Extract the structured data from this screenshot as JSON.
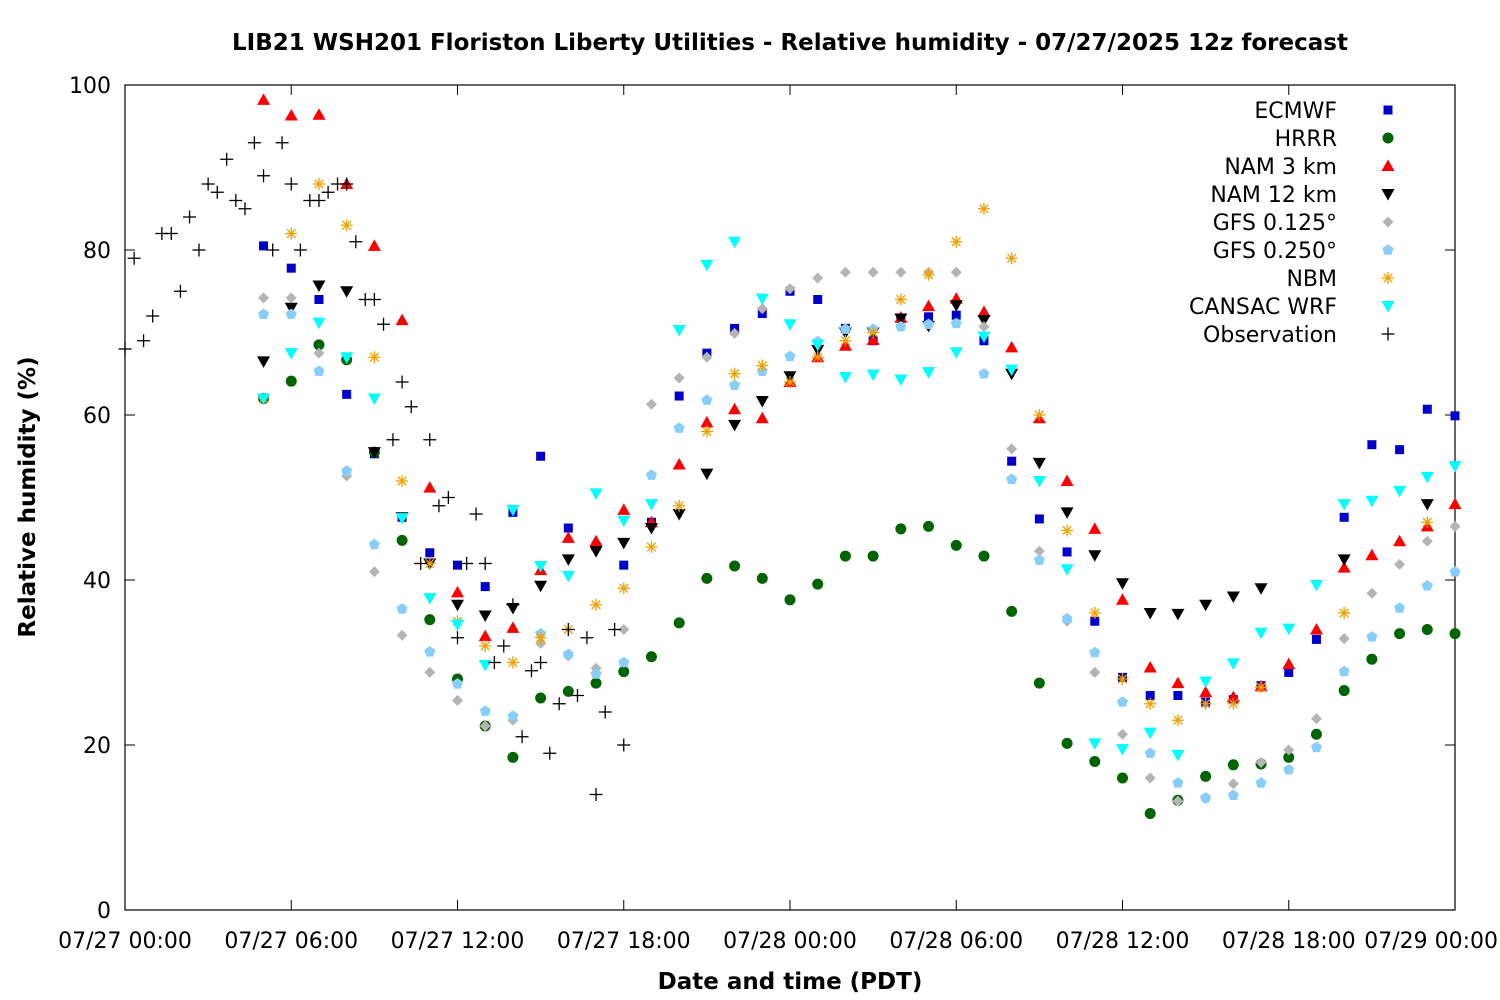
{
  "chart_data": {
    "type": "scatter",
    "title": "LIB21 WSH201 Floriston Liberty Utilities - Relative humidity - 07/27/2025 12z forecast",
    "xlabel": "Date and time (PDT)",
    "ylabel": "Relative humidity (%)",
    "x_unit": "hours since 07/27 00:00 PDT",
    "xlim": [
      0,
      48
    ],
    "ylim": [
      0,
      100
    ],
    "x_ticks": [
      {
        "value": 0,
        "label": "07/27 00:00"
      },
      {
        "value": 6,
        "label": "07/27 06:00"
      },
      {
        "value": 12,
        "label": "07/27 12:00"
      },
      {
        "value": 18,
        "label": "07/27 18:00"
      },
      {
        "value": 24,
        "label": "07/28 00:00"
      },
      {
        "value": 30,
        "label": "07/28 06:00"
      },
      {
        "value": 36,
        "label": "07/28 12:00"
      },
      {
        "value": 42,
        "label": "07/28 18:00"
      },
      {
        "value": 48,
        "label": "07/29 00:00"
      }
    ],
    "y_ticks": [
      0,
      20,
      40,
      60,
      80,
      100
    ],
    "grid": false,
    "legend_position": "top-right",
    "series": [
      {
        "name": "ECMWF",
        "marker": "square",
        "color": "#0000cc",
        "x": [
          5,
          6,
          7,
          8,
          9,
          10,
          11,
          12,
          13,
          14,
          15,
          16,
          17,
          18,
          19,
          20,
          21,
          22,
          23,
          24,
          25,
          26,
          27,
          28,
          29,
          30,
          31,
          32,
          33,
          34,
          35,
          36,
          37,
          38,
          39,
          40,
          41,
          42,
          43,
          44,
          45,
          46,
          47,
          48
        ],
        "y": [
          80.5,
          77.8,
          74,
          62.5,
          55.3,
          47.6,
          43.3,
          41.8,
          39.2,
          48.2,
          55,
          46.3,
          44.1,
          41.8,
          47,
          62.3,
          67.5,
          70.5,
          72.3,
          75,
          74,
          70.5,
          69,
          71.7,
          71.9,
          72.1,
          69,
          54.4,
          47.4,
          43.4,
          35,
          28.2,
          26,
          26,
          25.2,
          25.5,
          27.2,
          28.8,
          32.8,
          47.6,
          56.4,
          55.8,
          60.7,
          59.9
        ]
      },
      {
        "name": "HRRR",
        "marker": "circle",
        "color": "#006400",
        "x": [
          5,
          6,
          7,
          8,
          9,
          10,
          11,
          12,
          13,
          14,
          15,
          16,
          17,
          18,
          19,
          20,
          21,
          22,
          23,
          24,
          25,
          26,
          27,
          28,
          29,
          30,
          31,
          32,
          33,
          34,
          35,
          36,
          37,
          38,
          39,
          40,
          41,
          42,
          43,
          44,
          45,
          46,
          47,
          48
        ],
        "y": [
          62,
          64.1,
          68.5,
          66.7,
          55.5,
          44.8,
          35.2,
          28,
          22.3,
          18.5,
          25.7,
          26.5,
          27.5,
          28.9,
          30.7,
          34.8,
          40.2,
          41.7,
          40.2,
          37.6,
          39.5,
          42.9,
          42.9,
          46.2,
          46.5,
          44.2,
          42.9,
          36.2,
          27.5,
          20.2,
          18,
          16,
          11.7,
          13.3,
          16.2,
          17.6,
          17.7,
          18.5,
          21.3,
          26.6,
          30.4,
          33.5,
          34,
          33.5
        ]
      },
      {
        "name": "NAM 3 km",
        "marker": "triangle-up",
        "color": "#ff0000",
        "x": [
          5,
          6,
          7,
          8,
          9,
          10,
          11,
          12,
          13,
          14,
          15,
          16,
          17,
          18,
          19,
          20,
          21,
          22,
          23,
          24,
          25,
          26,
          27,
          28,
          29,
          30,
          31,
          32,
          33,
          34,
          35,
          36,
          37,
          38,
          39,
          40,
          41,
          42,
          43,
          44,
          45,
          46,
          47,
          48
        ],
        "y": [
          98.2,
          96.3,
          96.4,
          88,
          80.5,
          71.5,
          51.2,
          38.5,
          33.2,
          34.2,
          41.2,
          45.1,
          44.7,
          48.5,
          47,
          54,
          59.1,
          60.7,
          59.6,
          64,
          67,
          68.4,
          69.1,
          71.8,
          73.2,
          74.1,
          72.5,
          68.2,
          59.6,
          52,
          46.2,
          37.6,
          29.4,
          27.5,
          26.4,
          25.8,
          27.1,
          29.8,
          34,
          41.5,
          43,
          44.7,
          46.5,
          49.2
        ]
      },
      {
        "name": "NAM 12 km",
        "marker": "triangle-down",
        "color": "#000000",
        "x": [
          5,
          6,
          7,
          8,
          9,
          10,
          11,
          12,
          13,
          14,
          15,
          16,
          17,
          18,
          19,
          20,
          21,
          22,
          23,
          24,
          25,
          26,
          27,
          28,
          29,
          30,
          31,
          32,
          33,
          34,
          35,
          36,
          37,
          38,
          39,
          40,
          41,
          42,
          43,
          44,
          45,
          46,
          47,
          48
        ],
        "y": [
          66.5,
          73,
          75.7,
          75,
          55.5,
          47.6,
          42,
          37,
          35.7,
          36.6,
          39.3,
          42.5,
          43.5,
          44.5,
          46.3,
          48,
          52.9,
          58.8,
          61.7,
          64.7,
          67.9,
          70,
          70,
          71.7,
          70.8,
          73.3,
          71.5,
          65,
          54.2,
          48.2,
          43,
          39.6,
          36,
          35.9,
          37,
          38,
          39,
          null,
          null,
          42.5,
          null,
          null,
          49.2,
          null
        ]
      },
      {
        "name": "GFS 0.125°",
        "marker": "diamond",
        "color": "#b4b4b4",
        "x": [
          5,
          6,
          7,
          8,
          9,
          10,
          11,
          12,
          13,
          14,
          15,
          16,
          17,
          18,
          19,
          20,
          21,
          22,
          23,
          24,
          25,
          26,
          27,
          28,
          29,
          30,
          31,
          32,
          33,
          34,
          35,
          36,
          37,
          38,
          39,
          40,
          41,
          42,
          43,
          44,
          45,
          46,
          47,
          48
        ],
        "y": [
          74.2,
          74.2,
          67.5,
          52.6,
          41,
          33.3,
          28.8,
          25.4,
          22.3,
          23,
          32.3,
          30.8,
          29.3,
          34,
          61.3,
          64.5,
          67,
          69.9,
          72.9,
          75.3,
          76.6,
          77.3,
          77.3,
          77.3,
          77.3,
          77.3,
          70.7,
          55.9,
          43.5,
          35,
          28.8,
          21.3,
          16,
          13.2,
          13.5,
          15.3,
          17.9,
          19.4,
          23.2,
          32.9,
          38.4,
          41.9,
          44.7,
          46.5
        ]
      },
      {
        "name": "GFS 0.250°",
        "marker": "pentagon",
        "color": "#87cefa",
        "x": [
          5,
          6,
          7,
          8,
          9,
          10,
          11,
          12,
          13,
          14,
          15,
          16,
          17,
          18,
          19,
          20,
          21,
          22,
          23,
          24,
          25,
          26,
          27,
          28,
          29,
          30,
          31,
          32,
          33,
          34,
          35,
          36,
          37,
          38,
          39,
          40,
          41,
          42,
          43,
          44,
          45,
          46,
          47,
          48
        ],
        "y": [
          72.2,
          72.2,
          65.3,
          53.2,
          44.3,
          36.5,
          31.3,
          27.4,
          24.1,
          23.5,
          33.5,
          31,
          28.6,
          30,
          52.7,
          58.4,
          61.8,
          63.6,
          65.3,
          67.1,
          68.9,
          70.4,
          70.4,
          70.7,
          71,
          71.1,
          65,
          52.2,
          42.4,
          35.3,
          31.2,
          25.2,
          19,
          15.4,
          13.6,
          13.9,
          15.4,
          17,
          19.7,
          28.9,
          33.1,
          36.6,
          39.3,
          41
        ]
      },
      {
        "name": "NBM",
        "marker": "asterisk",
        "color": "#f0a000",
        "x": [
          5,
          6,
          7,
          8,
          9,
          10,
          11,
          12,
          13,
          14,
          15,
          16,
          17,
          18,
          19,
          20,
          21,
          22,
          23,
          24,
          25,
          26,
          27,
          28,
          29,
          30,
          31,
          32,
          33,
          34,
          35,
          36,
          37,
          38,
          39,
          40,
          41,
          42,
          43,
          44,
          45,
          46,
          47,
          48
        ],
        "y": [
          62,
          82,
          88,
          83,
          67,
          52,
          42,
          35,
          32,
          30,
          33,
          34,
          37,
          39,
          44,
          49,
          58,
          65,
          66,
          64,
          67,
          69,
          70,
          74,
          77,
          81,
          85,
          79,
          60,
          46,
          36,
          28,
          25,
          23,
          25,
          25,
          27,
          null,
          null,
          36,
          null,
          null,
          47,
          null
        ]
      },
      {
        "name": "CANSAC WRF",
        "marker": "triangle-down",
        "color": "#00ffff",
        "x": [
          5,
          6,
          7,
          8,
          9,
          10,
          11,
          12,
          13,
          14,
          15,
          16,
          17,
          18,
          19,
          20,
          21,
          22,
          23,
          24,
          25,
          26,
          27,
          28,
          29,
          30,
          31,
          32,
          33,
          34,
          35,
          36,
          37,
          38,
          39,
          40,
          41,
          42,
          43,
          44,
          45,
          46,
          47,
          48
        ],
        "y": [
          62,
          67.5,
          71.2,
          67,
          62,
          47.5,
          37.8,
          34.6,
          29.7,
          48.5,
          41.7,
          40.5,
          50.5,
          47.2,
          49.2,
          70.3,
          78.2,
          81,
          74.1,
          71,
          68.5,
          64.6,
          64.9,
          64.3,
          65.2,
          67.6,
          69.5,
          65.5,
          52,
          41.3,
          20.2,
          19.5,
          21.5,
          18.8,
          27.7,
          29.9,
          33.6,
          34.1,
          39.4,
          49.2,
          49.6,
          50.8,
          52.5,
          53.8
        ]
      },
      {
        "name": "Observation",
        "marker": "plus",
        "color": "#000000",
        "x": [
          0,
          0.33,
          0.67,
          1,
          1.33,
          1.67,
          2,
          2.33,
          2.67,
          3,
          3.33,
          3.67,
          4,
          4.33,
          4.67,
          5,
          5.33,
          5.67,
          6,
          6.33,
          6.67,
          7,
          7.33,
          7.67,
          8,
          8.33,
          8.67,
          9,
          9.33,
          9.67,
          10,
          10.33,
          10.67,
          11,
          11.33,
          11.67,
          12,
          12.33,
          12.67,
          13,
          13.33,
          13.67,
          14,
          14.33,
          14.67,
          15,
          15.33,
          15.67,
          16,
          16.33,
          16.67,
          17,
          17.33,
          17.67,
          18
        ],
        "y": [
          68,
          79,
          69,
          72,
          82,
          82,
          75,
          84,
          80,
          88,
          87,
          91,
          86,
          85,
          93,
          89,
          80,
          93,
          88,
          80,
          86,
          86,
          87,
          88,
          88,
          81,
          74,
          74,
          71,
          57,
          64,
          61,
          42,
          57,
          49,
          50,
          33,
          42,
          48,
          42,
          30,
          32,
          37,
          21,
          29,
          30,
          19,
          25,
          34,
          26,
          33,
          14,
          24,
          34,
          20
        ]
      }
    ]
  }
}
